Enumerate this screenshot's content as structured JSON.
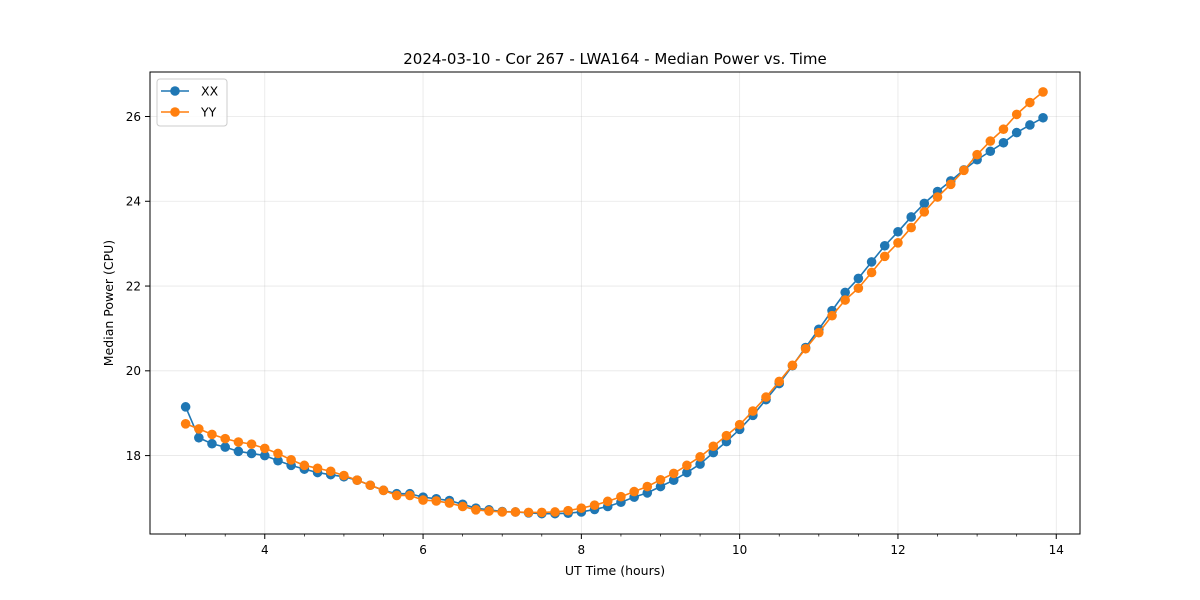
{
  "chart_data": {
    "type": "line",
    "title": "2024-03-10 - Cor 267 - LWA164 - Median Power vs. Time",
    "xlabel": "UT Time (hours)",
    "ylabel": "Median Power (CPU)",
    "xlim": [
      2.55,
      14.3
    ],
    "ylim": [
      16.15,
      27.05
    ],
    "xticks": [
      4,
      6,
      8,
      10,
      12,
      14
    ],
    "xtick_labels": [
      "4",
      "6",
      "8",
      "10",
      "12",
      "14"
    ],
    "yticks": [
      18,
      20,
      22,
      24,
      26
    ],
    "ytick_labels": [
      "18",
      "20",
      "22",
      "24",
      "26"
    ],
    "grid": true,
    "legend_position": "upper-left",
    "x": [
      3.0,
      3.167,
      3.333,
      3.5,
      3.667,
      3.833,
      4.0,
      4.167,
      4.333,
      4.5,
      4.667,
      4.833,
      5.0,
      5.167,
      5.333,
      5.5,
      5.667,
      5.833,
      6.0,
      6.167,
      6.333,
      6.5,
      6.667,
      6.833,
      7.0,
      7.167,
      7.333,
      7.5,
      7.667,
      7.833,
      8.0,
      8.167,
      8.333,
      8.5,
      8.667,
      8.833,
      9.0,
      9.167,
      9.333,
      9.5,
      9.667,
      9.833,
      10.0,
      10.167,
      10.333,
      10.5,
      10.667,
      10.833,
      11.0,
      11.167,
      11.333,
      11.5,
      11.667,
      11.833,
      12.0,
      12.167,
      12.333,
      12.5,
      12.667,
      12.833,
      13.0,
      13.167,
      13.333,
      13.5,
      13.667,
      13.833
    ],
    "series": [
      {
        "name": "XX",
        "color": "#1f77b4",
        "values": [
          19.15,
          18.42,
          18.28,
          18.2,
          18.1,
          18.05,
          18.0,
          17.88,
          17.77,
          17.68,
          17.6,
          17.55,
          17.5,
          17.42,
          17.3,
          17.18,
          17.1,
          17.1,
          17.02,
          16.98,
          16.94,
          16.85,
          16.76,
          16.72,
          16.68,
          16.67,
          16.65,
          16.63,
          16.63,
          16.64,
          16.67,
          16.73,
          16.8,
          16.9,
          17.02,
          17.12,
          17.27,
          17.42,
          17.6,
          17.8,
          18.07,
          18.33,
          18.62,
          18.95,
          19.32,
          19.7,
          20.12,
          20.55,
          20.98,
          21.42,
          21.85,
          22.18,
          22.57,
          22.95,
          23.28,
          23.63,
          23.95,
          24.23,
          24.48,
          24.74,
          24.98,
          25.18,
          25.38,
          25.62,
          25.8,
          25.97
        ]
      },
      {
        "name": "YY",
        "color": "#ff7f0e",
        "values": [
          18.75,
          18.63,
          18.5,
          18.4,
          18.32,
          18.27,
          18.17,
          18.05,
          17.9,
          17.77,
          17.7,
          17.63,
          17.53,
          17.42,
          17.3,
          17.18,
          17.06,
          17.06,
          16.95,
          16.93,
          16.88,
          16.8,
          16.72,
          16.69,
          16.67,
          16.67,
          16.66,
          16.66,
          16.67,
          16.7,
          16.76,
          16.83,
          16.92,
          17.03,
          17.15,
          17.27,
          17.43,
          17.58,
          17.77,
          17.97,
          18.22,
          18.47,
          18.73,
          19.05,
          19.38,
          19.75,
          20.13,
          20.52,
          20.9,
          21.3,
          21.67,
          21.95,
          22.32,
          22.7,
          23.02,
          23.38,
          23.75,
          24.1,
          24.4,
          24.73,
          25.1,
          25.42,
          25.7,
          26.05,
          26.33,
          26.58
        ]
      }
    ]
  }
}
